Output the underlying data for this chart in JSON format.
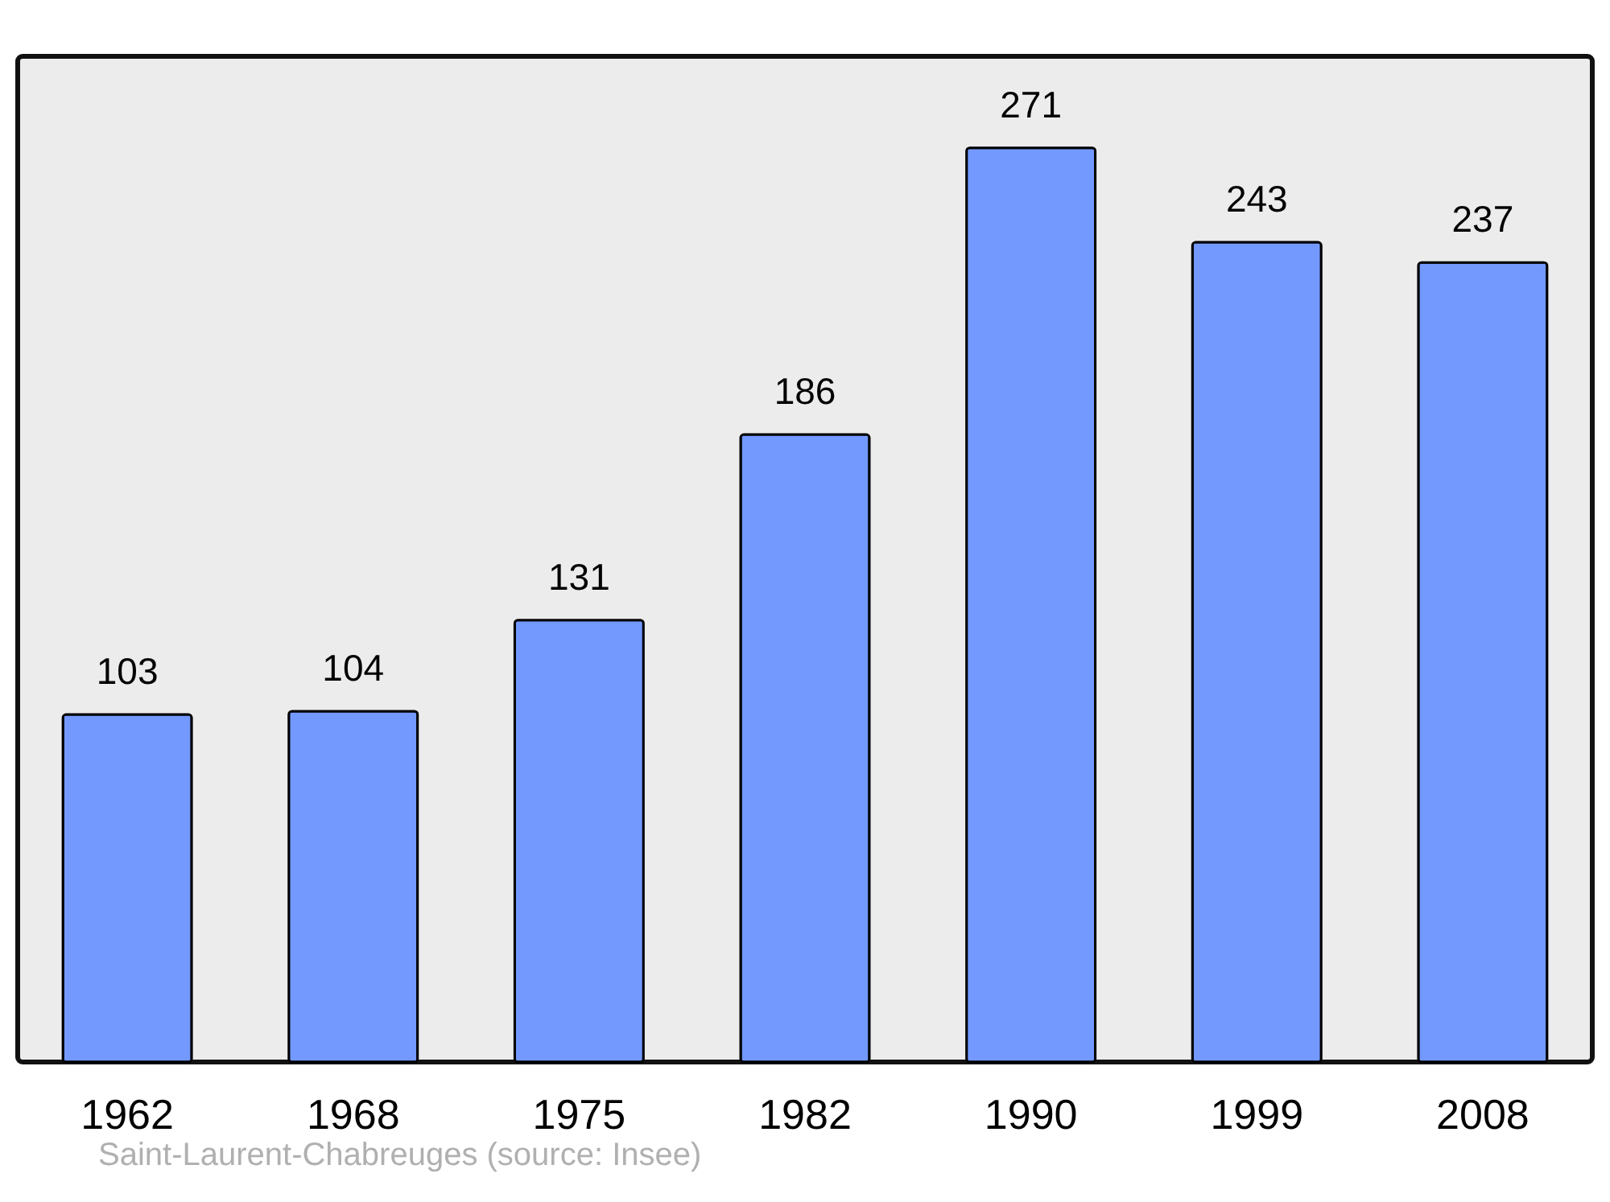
{
  "chart_data": {
    "type": "bar",
    "categories": [
      "1962",
      "1968",
      "1975",
      "1982",
      "1990",
      "1999",
      "2008"
    ],
    "values": [
      103,
      104,
      131,
      186,
      271,
      243,
      237
    ],
    "color": "#7399ff",
    "data_labels": true,
    "grid": false,
    "annotations": [
      "Saint-Laurent-Chabreuges    (source: Insee)"
    ]
  }
}
